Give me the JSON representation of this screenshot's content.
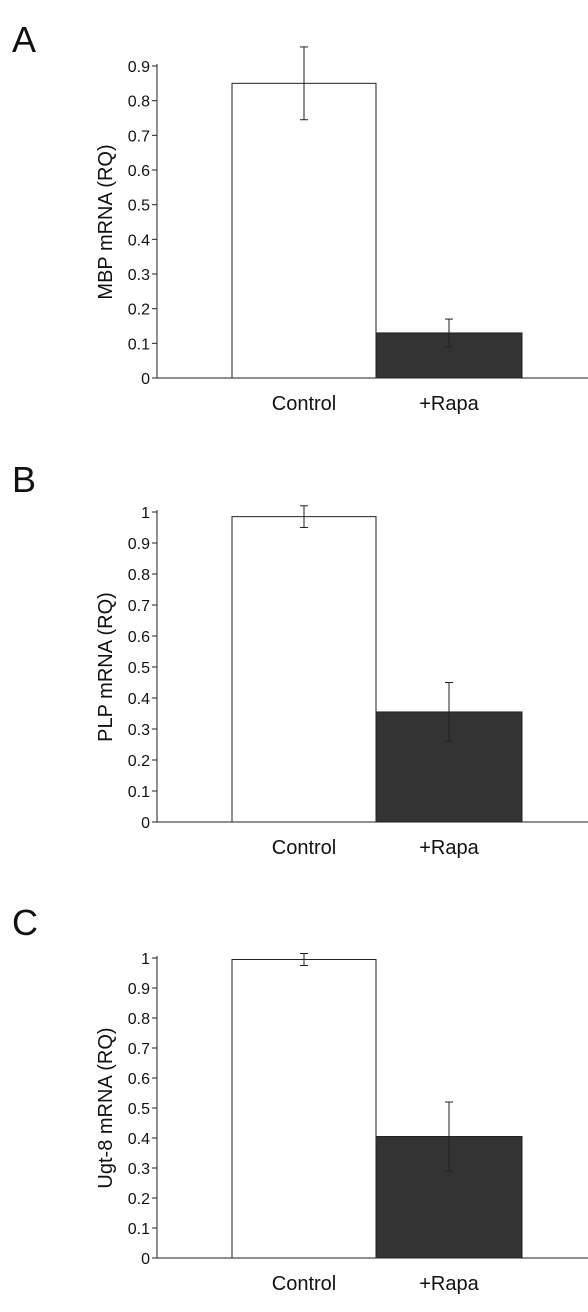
{
  "chart_data": [
    {
      "type": "bar",
      "panel_label": "A",
      "categories": [
        "Control",
        "+Rapa"
      ],
      "values": [
        0.85,
        0.13
      ],
      "errors": [
        0.105,
        0.04
      ],
      "ylabel": "MBP mRNA (RQ)",
      "ylim": [
        0,
        0.9
      ],
      "yticks": [
        "0",
        "0.1",
        "0.2",
        "0.3",
        "0.4",
        "0.5",
        "0.6",
        "0.7",
        "0.8",
        "0.9"
      ],
      "grid": false,
      "bar_colors": [
        "#ffffff",
        "#333333"
      ]
    },
    {
      "type": "bar",
      "panel_label": "B",
      "categories": [
        "Control",
        "+Rapa"
      ],
      "values": [
        0.985,
        0.355
      ],
      "errors": [
        0.035,
        0.095
      ],
      "ylabel": "PLP mRNA (RQ)",
      "ylim": [
        0,
        1
      ],
      "yticks": [
        "0",
        "0.1",
        "0.2",
        "0.3",
        "0.4",
        "0.5",
        "0.6",
        "0.7",
        "0.8",
        "0.9",
        "1"
      ],
      "grid": false,
      "bar_colors": [
        "#ffffff",
        "#333333"
      ]
    },
    {
      "type": "bar",
      "panel_label": "C",
      "categories": [
        "Control",
        "+Rapa"
      ],
      "values": [
        0.995,
        0.405
      ],
      "errors": [
        0.02,
        0.115
      ],
      "ylabel": "Ugt-8 mRNA (RQ)",
      "ylim": [
        0,
        1
      ],
      "yticks": [
        "0",
        "0.1",
        "0.2",
        "0.3",
        "0.4",
        "0.5",
        "0.6",
        "0.7",
        "0.8",
        "0.9",
        "1"
      ],
      "grid": false,
      "bar_colors": [
        "#ffffff",
        "#333333"
      ]
    }
  ]
}
